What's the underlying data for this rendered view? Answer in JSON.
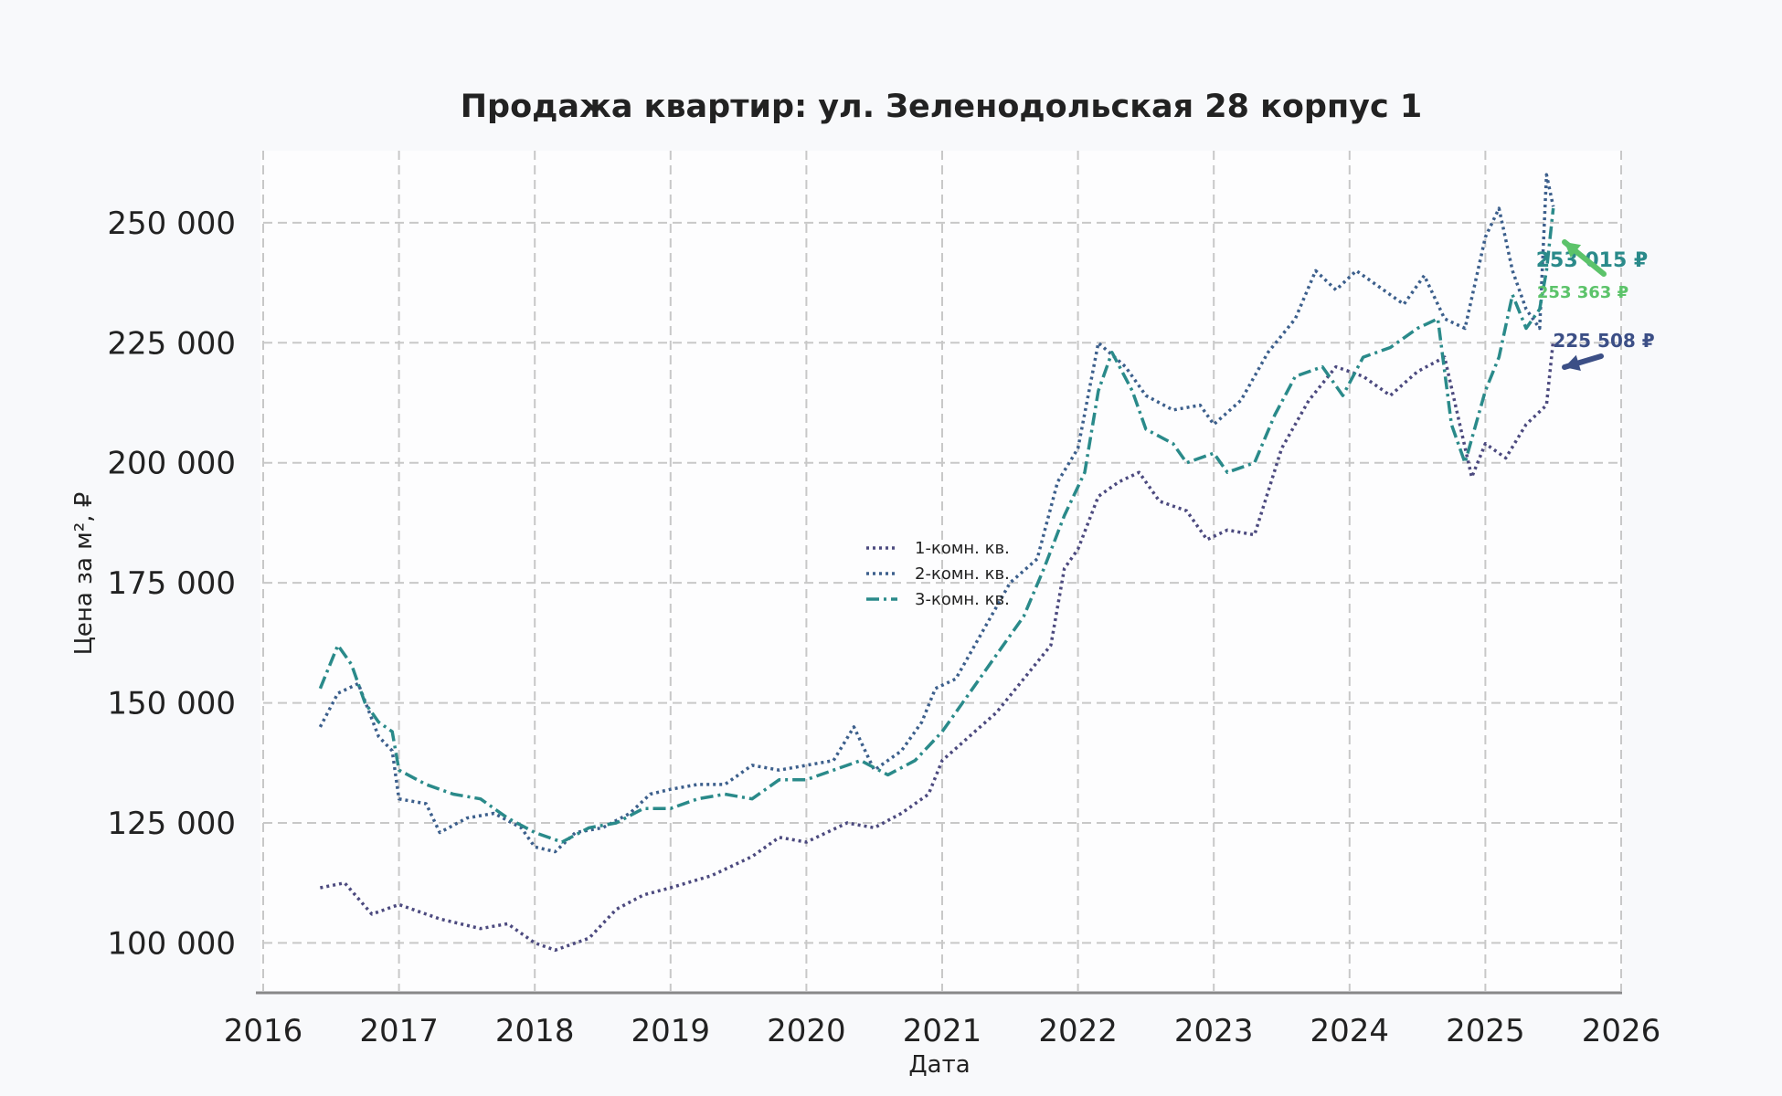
{
  "chart_data": {
    "type": "line",
    "title": "Продажа квартир: ул. Зеленодольская 28 корпус 1",
    "xlabel": "Дата",
    "ylabel": "Цена за м², ₽",
    "xlim": [
      2016,
      2026
    ],
    "ylim": [
      90000,
      265000
    ],
    "x_ticks": [
      "2016",
      "2017",
      "2018",
      "2019",
      "2020",
      "2021",
      "2022",
      "2023",
      "2024",
      "2025",
      "2026"
    ],
    "y_ticks": [
      {
        "value": 100000,
        "label": "100 000"
      },
      {
        "value": 125000,
        "label": "125 000"
      },
      {
        "value": 150000,
        "label": "150 000"
      },
      {
        "value": 175000,
        "label": "175 000"
      },
      {
        "value": 200000,
        "label": "200 000"
      },
      {
        "value": 225000,
        "label": "225 000"
      },
      {
        "value": 250000,
        "label": "250 000"
      }
    ],
    "grid": true,
    "legend_position": "center",
    "series": [
      {
        "name": "1-комн. кв.",
        "color": "#4c4a7f",
        "style": "dotted",
        "points": [
          [
            2016.42,
            111500
          ],
          [
            2016.6,
            112500
          ],
          [
            2016.8,
            106000
          ],
          [
            2017.0,
            108000
          ],
          [
            2017.3,
            105000
          ],
          [
            2017.6,
            103000
          ],
          [
            2017.8,
            104000
          ],
          [
            2018.0,
            100000
          ],
          [
            2018.15,
            98500
          ],
          [
            2018.4,
            101000
          ],
          [
            2018.6,
            107000
          ],
          [
            2018.8,
            110000
          ],
          [
            2019.0,
            111500
          ],
          [
            2019.3,
            114000
          ],
          [
            2019.6,
            118000
          ],
          [
            2019.8,
            122000
          ],
          [
            2020.0,
            121000
          ],
          [
            2020.3,
            125000
          ],
          [
            2020.5,
            124000
          ],
          [
            2020.7,
            127000
          ],
          [
            2020.9,
            131000
          ],
          [
            2021.0,
            138000
          ],
          [
            2021.2,
            143000
          ],
          [
            2021.4,
            148000
          ],
          [
            2021.6,
            155000
          ],
          [
            2021.8,
            162000
          ],
          [
            2021.9,
            178000
          ],
          [
            2022.0,
            182000
          ],
          [
            2022.15,
            193000
          ],
          [
            2022.3,
            196000
          ],
          [
            2022.45,
            198000
          ],
          [
            2022.6,
            192000
          ],
          [
            2022.8,
            190000
          ],
          [
            2022.95,
            184000
          ],
          [
            2023.1,
            186000
          ],
          [
            2023.3,
            185000
          ],
          [
            2023.5,
            203000
          ],
          [
            2023.7,
            213000
          ],
          [
            2023.9,
            220000
          ],
          [
            2024.1,
            218000
          ],
          [
            2024.3,
            214000
          ],
          [
            2024.5,
            219000
          ],
          [
            2024.7,
            222000
          ],
          [
            2024.9,
            197000
          ],
          [
            2025.0,
            204000
          ],
          [
            2025.15,
            201000
          ],
          [
            2025.3,
            208000
          ],
          [
            2025.45,
            212000
          ],
          [
            2025.5,
            225508
          ]
        ]
      },
      {
        "name": "2-комн. кв.",
        "color": "#3c5f8c",
        "style": "dotted",
        "points": [
          [
            2016.42,
            145000
          ],
          [
            2016.55,
            152000
          ],
          [
            2016.7,
            154000
          ],
          [
            2016.85,
            143000
          ],
          [
            2016.95,
            140000
          ],
          [
            2017.0,
            130000
          ],
          [
            2017.2,
            129000
          ],
          [
            2017.3,
            123000
          ],
          [
            2017.5,
            126000
          ],
          [
            2017.7,
            127000
          ],
          [
            2017.9,
            124000
          ],
          [
            2018.0,
            120000
          ],
          [
            2018.15,
            119000
          ],
          [
            2018.3,
            123000
          ],
          [
            2018.5,
            124000
          ],
          [
            2018.7,
            127000
          ],
          [
            2018.85,
            131000
          ],
          [
            2019.0,
            132000
          ],
          [
            2019.2,
            133000
          ],
          [
            2019.4,
            133000
          ],
          [
            2019.6,
            137000
          ],
          [
            2019.8,
            136000
          ],
          [
            2020.0,
            137000
          ],
          [
            2020.2,
            138000
          ],
          [
            2020.35,
            145000
          ],
          [
            2020.5,
            136000
          ],
          [
            2020.7,
            140000
          ],
          [
            2020.85,
            146000
          ],
          [
            2020.95,
            153000
          ],
          [
            2021.1,
            155000
          ],
          [
            2021.3,
            165000
          ],
          [
            2021.5,
            175000
          ],
          [
            2021.7,
            180000
          ],
          [
            2021.85,
            196000
          ],
          [
            2022.0,
            203000
          ],
          [
            2022.15,
            225000
          ],
          [
            2022.35,
            220000
          ],
          [
            2022.5,
            214000
          ],
          [
            2022.7,
            211000
          ],
          [
            2022.9,
            212000
          ],
          [
            2023.0,
            208000
          ],
          [
            2023.2,
            213000
          ],
          [
            2023.4,
            223000
          ],
          [
            2023.6,
            230000
          ],
          [
            2023.75,
            240000
          ],
          [
            2023.9,
            236000
          ],
          [
            2024.05,
            240000
          ],
          [
            2024.2,
            237000
          ],
          [
            2024.4,
            233000
          ],
          [
            2024.55,
            239000
          ],
          [
            2024.7,
            230000
          ],
          [
            2024.85,
            228000
          ],
          [
            2025.0,
            247000
          ],
          [
            2025.1,
            253000
          ],
          [
            2025.2,
            240000
          ],
          [
            2025.3,
            232000
          ],
          [
            2025.4,
            228000
          ],
          [
            2025.45,
            260000
          ],
          [
            2025.5,
            253363
          ]
        ]
      },
      {
        "name": "3-комн. кв.",
        "color": "#2a8a8a",
        "style": "dashdot",
        "points": [
          [
            2016.42,
            153000
          ],
          [
            2016.55,
            162000
          ],
          [
            2016.65,
            158000
          ],
          [
            2016.75,
            150000
          ],
          [
            2016.85,
            146000
          ],
          [
            2016.95,
            144000
          ],
          [
            2017.0,
            136000
          ],
          [
            2017.2,
            133000
          ],
          [
            2017.4,
            131000
          ],
          [
            2017.6,
            130000
          ],
          [
            2017.8,
            126000
          ],
          [
            2018.0,
            123000
          ],
          [
            2018.2,
            121000
          ],
          [
            2018.4,
            124000
          ],
          [
            2018.6,
            125000
          ],
          [
            2018.8,
            128000
          ],
          [
            2019.0,
            128000
          ],
          [
            2019.2,
            130000
          ],
          [
            2019.4,
            131000
          ],
          [
            2019.6,
            130000
          ],
          [
            2019.8,
            134000
          ],
          [
            2020.0,
            134000
          ],
          [
            2020.2,
            136000
          ],
          [
            2020.4,
            138000
          ],
          [
            2020.6,
            135000
          ],
          [
            2020.8,
            138000
          ],
          [
            2021.0,
            144000
          ],
          [
            2021.2,
            152000
          ],
          [
            2021.4,
            160000
          ],
          [
            2021.6,
            168000
          ],
          [
            2021.75,
            178000
          ],
          [
            2021.9,
            189000
          ],
          [
            2022.05,
            198000
          ],
          [
            2022.15,
            215000
          ],
          [
            2022.25,
            223000
          ],
          [
            2022.4,
            215000
          ],
          [
            2022.5,
            207000
          ],
          [
            2022.7,
            204000
          ],
          [
            2022.8,
            200000
          ],
          [
            2023.0,
            202000
          ],
          [
            2023.1,
            198000
          ],
          [
            2023.3,
            200000
          ],
          [
            2023.45,
            210000
          ],
          [
            2023.6,
            218000
          ],
          [
            2023.8,
            220000
          ],
          [
            2023.95,
            214000
          ],
          [
            2024.1,
            222000
          ],
          [
            2024.3,
            224000
          ],
          [
            2024.5,
            228000
          ],
          [
            2024.65,
            230000
          ],
          [
            2024.75,
            208000
          ],
          [
            2024.85,
            200000
          ],
          [
            2025.0,
            215000
          ],
          [
            2025.1,
            222000
          ],
          [
            2025.2,
            235000
          ],
          [
            2025.3,
            228000
          ],
          [
            2025.4,
            232000
          ],
          [
            2025.45,
            240000
          ],
          [
            2025.5,
            253015
          ]
        ]
      }
    ],
    "annotations": [
      {
        "text": "253 015 ₽",
        "x": 2025.5,
        "y": 253015,
        "color": "#2a8a8a"
      },
      {
        "text": "253 363 ₽",
        "x": 2025.5,
        "y": 253363,
        "color": "#5cc36a"
      },
      {
        "text": "225 508 ₽",
        "x": 2025.5,
        "y": 225508,
        "color": "#3c4f86"
      }
    ]
  }
}
